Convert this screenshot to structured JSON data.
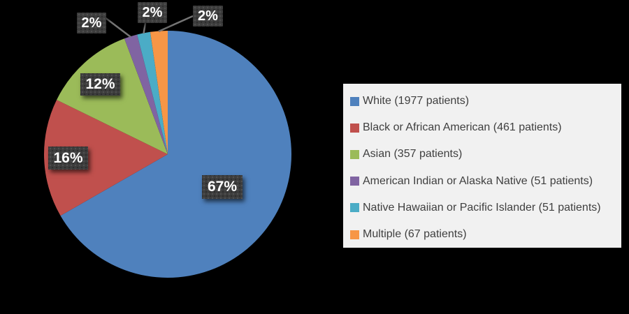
{
  "background_color": "#000000",
  "chart_data": {
    "type": "pie",
    "legend_position": "right",
    "legend_background": "#f1f1f1",
    "callout_box_color": "#3d3d3d",
    "leader_line_color": "#757575",
    "slices": [
      {
        "label": "White",
        "patients": 1977,
        "percent": 67,
        "percent_label": "67%",
        "legend_label": "White (1977 patients)",
        "color": "#4F81BD"
      },
      {
        "label": "Black or African American",
        "patients": 461,
        "percent": 16,
        "percent_label": "16%",
        "legend_label": "Black or African American (461 patients)",
        "color": "#C0504D"
      },
      {
        "label": "Asian",
        "patients": 357,
        "percent": 12,
        "percent_label": "12%",
        "legend_label": "Asian (357 patients)",
        "color": "#9BBB59"
      },
      {
        "label": "American Indian or Alaska Native",
        "patients": 51,
        "percent": 2,
        "percent_label": "2%",
        "legend_label": "American Indian or Alaska Native (51 patients)",
        "color": "#8064A2"
      },
      {
        "label": "Native Hawaiian or Pacific Islander",
        "patients": 51,
        "percent": 2,
        "percent_label": "2%",
        "legend_label": "Native Hawaiian or Pacific Islander (51 patients)",
        "color": "#4BACC6"
      },
      {
        "label": "Multiple",
        "patients": 67,
        "percent": 2,
        "percent_label": "2%",
        "legend_label": "Multiple (67 patients)",
        "color": "#F79646"
      }
    ]
  }
}
